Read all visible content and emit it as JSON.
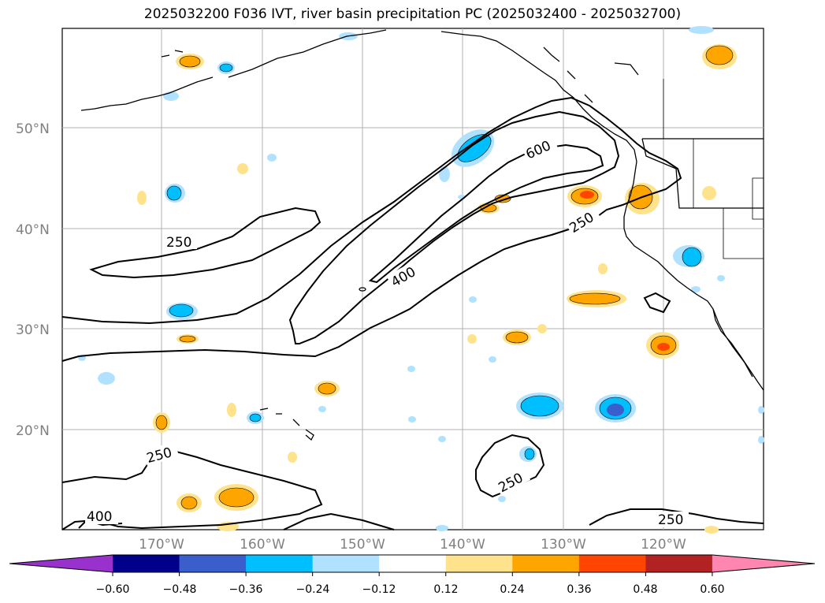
{
  "title": "2025032200 F036 IVT, river basin precipitation PC (2025032400 - 2025032700)",
  "lat_labels": [
    "50°N",
    "40°N",
    "30°N",
    "20°N"
  ],
  "lon_labels": [
    "170°W",
    "160°W",
    "150°W",
    "140°W",
    "130°W",
    "120°W"
  ],
  "contour_labels": {
    "c250_west": "250",
    "c600": "600",
    "c250_east": "250",
    "c400": "400",
    "c250_sw": "250",
    "c400_sw": "400",
    "c250_south": "250",
    "c250_se": "250"
  },
  "colorbar": {
    "ticks": [
      "−0.60",
      "−0.48",
      "−0.36",
      "−0.24",
      "−0.12",
      "0.12",
      "0.24",
      "0.36",
      "0.48",
      "0.60"
    ],
    "colors": [
      "#9932cc",
      "#00008b",
      "#3a5fcd",
      "#00bfff",
      "#b0e2ff",
      "#ffffff",
      "#ffe38c",
      "#ffa500",
      "#ff4500",
      "#b22222",
      "#ff86b0"
    ]
  },
  "colors": {
    "grid": "#b0b0b0",
    "tick_label": "#808080",
    "contour": "#000000"
  }
}
